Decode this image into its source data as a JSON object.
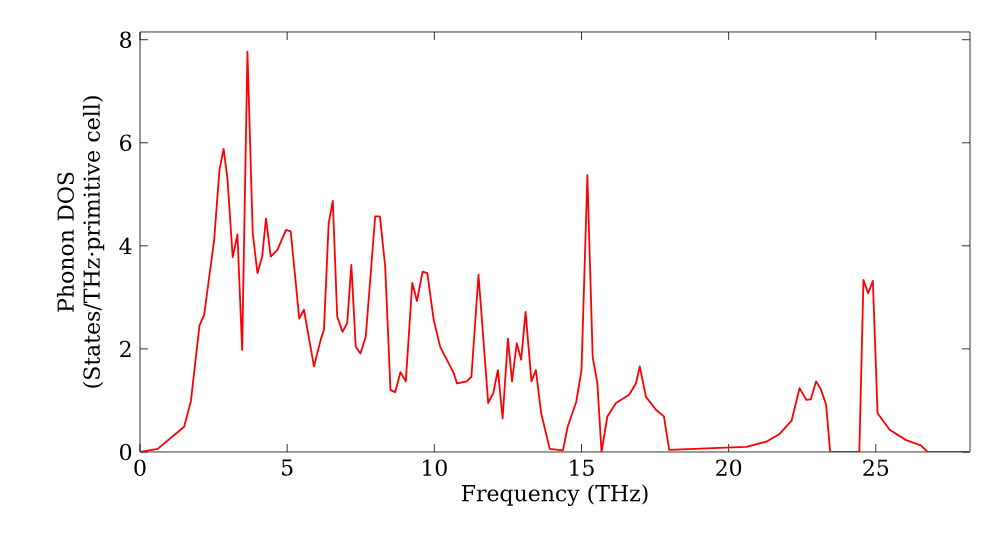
{
  "chart_data": {
    "type": "line",
    "xlabel": "Frequency (THz)",
    "ylabel": "Phonon DOS (States/THz·primitive cell)",
    "xlim": [
      0,
      28.2
    ],
    "ylim": [
      0,
      8.15
    ],
    "xticks": [
      0,
      5,
      10,
      15,
      20,
      25
    ],
    "yticks": [
      0,
      2,
      4,
      6,
      8
    ],
    "grid": false,
    "marker": "none",
    "line_style": "solid",
    "series": [
      {
        "color": "#ff0000",
        "x": [
          0,
          0.6,
          1.5,
          1.73,
          2.02,
          2.18,
          2.52,
          2.7,
          2.84,
          2.97,
          3.15,
          3.31,
          3.47,
          3.65,
          3.83,
          3.99,
          4.15,
          4.28,
          4.44,
          4.67,
          4.96,
          5.12,
          5.41,
          5.57,
          5.91,
          6.14,
          6.25,
          6.41,
          6.55,
          6.7,
          6.88,
          7.04,
          7.18,
          7.33,
          7.49,
          7.67,
          7.99,
          8.15,
          8.33,
          8.51,
          8.67,
          8.85,
          9.03,
          9.25,
          9.41,
          9.6,
          9.76,
          9.98,
          10.2,
          10.66,
          10.77,
          11.1,
          11.26,
          11.5,
          11.83,
          12.0,
          12.16,
          12.32,
          12.5,
          12.64,
          12.8,
          12.95,
          13.1,
          13.3,
          13.45,
          13.63,
          13.92,
          14.37,
          14.53,
          14.82,
          15.0,
          15.2,
          15.38,
          15.54,
          15.68,
          15.88,
          16.17,
          16.62,
          16.85,
          16.98,
          17.19,
          17.53,
          17.8,
          17.98,
          19.67,
          20.6,
          21.28,
          21.73,
          22.14,
          22.41,
          22.64,
          22.79,
          22.97,
          23.13,
          23.31,
          23.45,
          24.44,
          24.58,
          24.74,
          24.9,
          25.06,
          25.47,
          26.03,
          26.53,
          26.76,
          28.2
        ],
        "values": [
          0,
          0.06,
          0.49,
          0.99,
          2.45,
          2.66,
          4.12,
          5.48,
          5.88,
          5.31,
          3.78,
          4.22,
          1.98,
          7.77,
          4.24,
          3.47,
          3.79,
          4.53,
          3.79,
          3.92,
          4.31,
          4.28,
          2.59,
          2.76,
          1.66,
          2.18,
          2.37,
          4.44,
          4.87,
          2.63,
          2.33,
          2.5,
          3.63,
          2.04,
          1.91,
          2.24,
          4.57,
          4.57,
          3.6,
          1.2,
          1.16,
          1.55,
          1.37,
          3.28,
          2.93,
          3.5,
          3.47,
          2.56,
          2.04,
          1.53,
          1.33,
          1.37,
          1.46,
          3.44,
          0.95,
          1.14,
          1.59,
          0.65,
          2.2,
          1.37,
          2.11,
          1.79,
          2.72,
          1.37,
          1.59,
          0.75,
          0.06,
          0.03,
          0.49,
          0.97,
          1.59,
          5.37,
          1.84,
          1.33,
          0,
          0.69,
          0.95,
          1.11,
          1.33,
          1.66,
          1.07,
          0.82,
          0.69,
          0.04,
          0.08,
          0.1,
          0.2,
          0.35,
          0.61,
          1.24,
          1.01,
          1.02,
          1.37,
          1.22,
          0.92,
          0,
          0,
          3.34,
          3.08,
          3.32,
          0.75,
          0.43,
          0.23,
          0.13,
          0,
          0
        ]
      }
    ]
  }
}
